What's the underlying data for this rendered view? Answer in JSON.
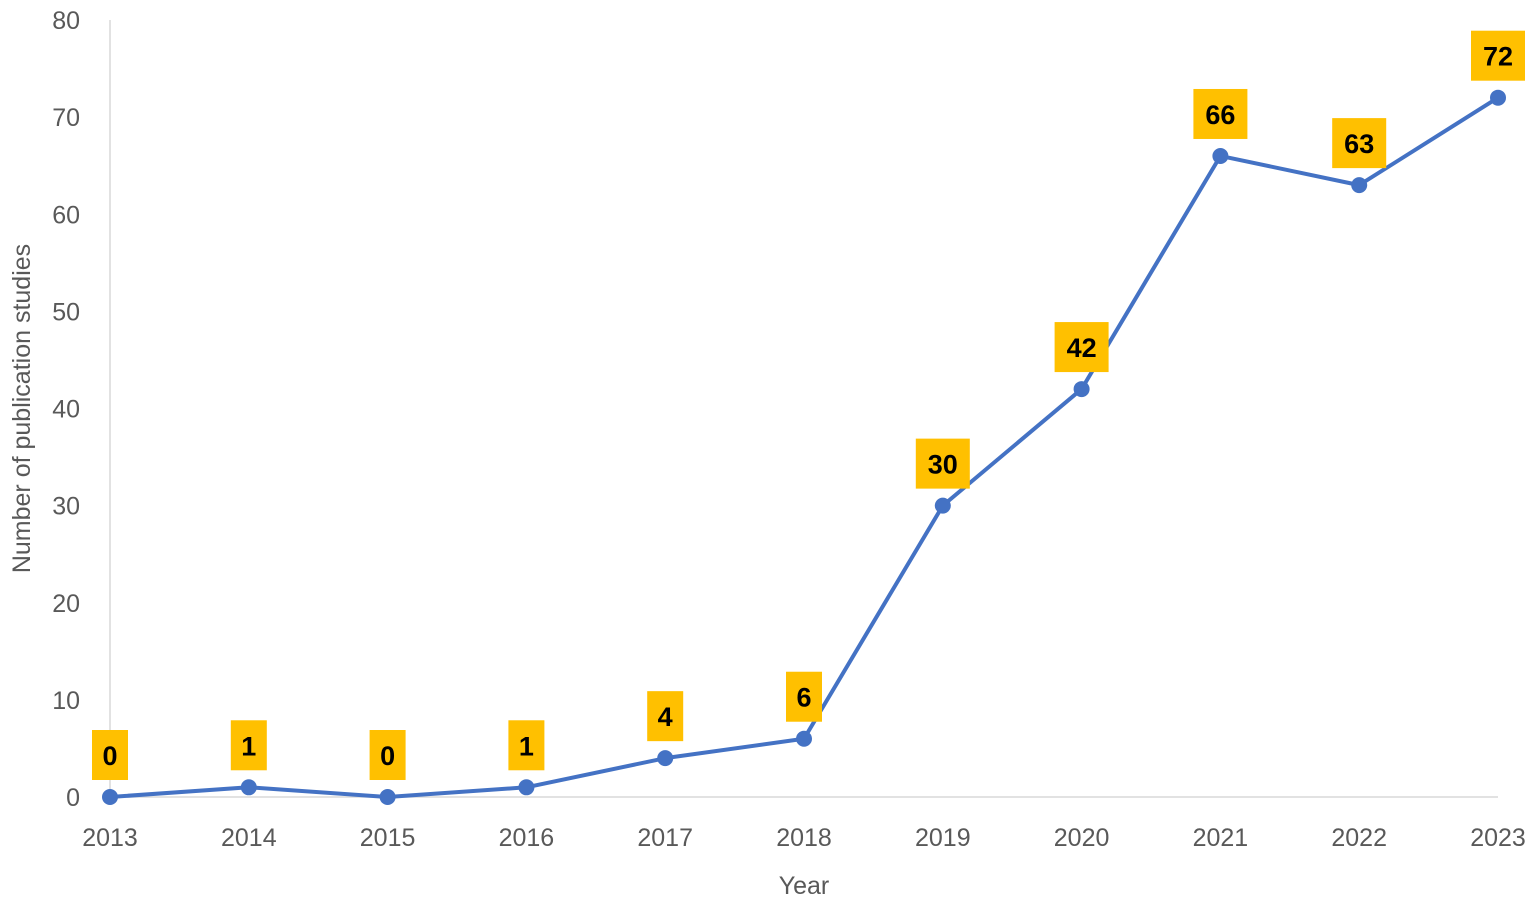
{
  "chart_data": {
    "type": "line",
    "title": "",
    "xlabel": "Year",
    "ylabel": "Number of publication studies",
    "categories": [
      "2013",
      "2014",
      "2015",
      "2016",
      "2017",
      "2018",
      "2019",
      "2020",
      "2021",
      "2022",
      "2023"
    ],
    "series": [
      {
        "values": [
          0,
          1,
          0,
          1,
          4,
          6,
          30,
          42,
          66,
          63,
          72
        ]
      }
    ],
    "ylim": [
      0,
      80
    ],
    "yticks": [
      0,
      10,
      20,
      30,
      40,
      50,
      60,
      70,
      80
    ],
    "grid": false,
    "legend": "none",
    "data_labels": true,
    "colors": {
      "line": "#4472C4",
      "marker": "#4472C4",
      "label_background": "#FFC000",
      "axis": "#D9D9D9",
      "text": "#595959"
    }
  }
}
